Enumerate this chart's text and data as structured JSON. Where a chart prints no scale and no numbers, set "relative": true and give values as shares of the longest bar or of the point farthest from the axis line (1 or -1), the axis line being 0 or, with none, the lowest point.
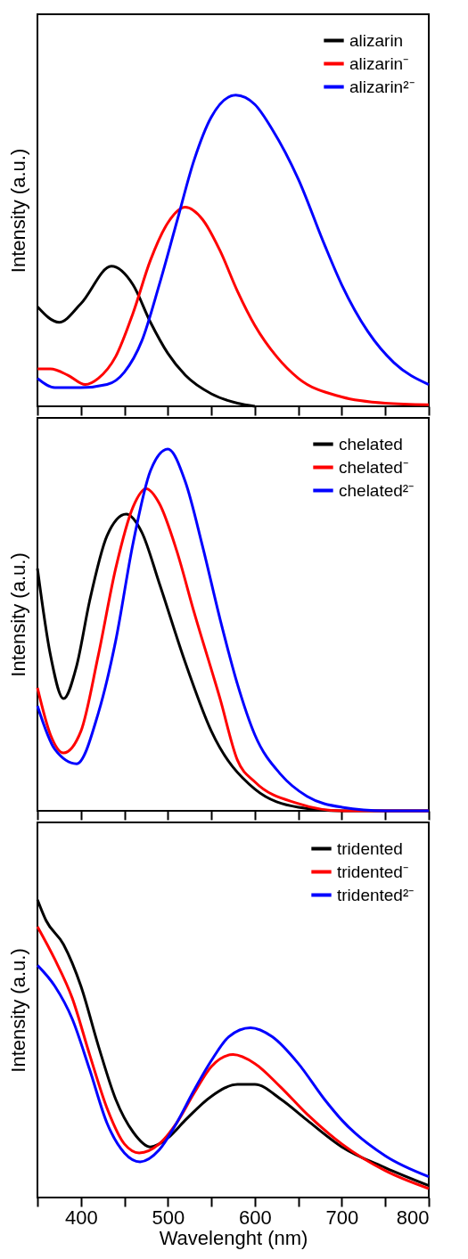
{
  "chart_data": [
    {
      "type": "line",
      "ylabel": "Intensity (a.u.)",
      "relative": true,
      "xlim": [
        350,
        800
      ],
      "xticks": [
        {
          "value": 350,
          "label": null
        },
        400,
        {
          "value": 450,
          "label": null
        },
        500,
        {
          "value": 550,
          "label": null
        },
        600,
        {
          "value": 650,
          "label": null
        },
        700,
        {
          "value": 750,
          "label": null
        },
        800
      ],
      "tick_labels": false,
      "grid": false,
      "legend": "top right",
      "line_style": "solid",
      "marker": "none",
      "series": [
        {
          "name": "alizarin",
          "color": "#000000",
          "x": [
            350,
            375,
            400,
            435,
            460,
            480,
            500,
            520,
            550,
            580,
            600
          ],
          "values": [
            0.32,
            0.27,
            0.33,
            0.45,
            0.39,
            0.27,
            0.17,
            0.1,
            0.04,
            0.01,
            0
          ]
        },
        {
          "name": "alizarin⁻",
          "color": "#ff0000",
          "x": [
            350,
            365,
            385,
            405,
            420,
            440,
            460,
            480,
            500,
            520,
            540,
            560,
            580,
            600,
            625,
            650,
            700,
            750,
            800
          ],
          "values": [
            0.12,
            0.12,
            0.1,
            0.07,
            0.09,
            0.16,
            0.3,
            0.47,
            0.59,
            0.64,
            0.6,
            0.5,
            0.37,
            0.26,
            0.16,
            0.09,
            0.03,
            0.01,
            0.005
          ]
        },
        {
          "name": "alizarin²⁻",
          "color": "#0000ff",
          "x": [
            350,
            370,
            400,
            430,
            450,
            470,
            490,
            510,
            530,
            550,
            578,
            600,
            620,
            650,
            680,
            700,
            730,
            760,
            800
          ],
          "values": [
            0.09,
            0.06,
            0.06,
            0.07,
            0.11,
            0.21,
            0.39,
            0.59,
            0.79,
            0.93,
            1,
            0.97,
            0.89,
            0.73,
            0.52,
            0.39,
            0.24,
            0.14,
            0.07
          ]
        }
      ]
    },
    {
      "type": "line",
      "ylabel": "Intensity (a.u.)",
      "relative": true,
      "xlim": [
        350,
        800
      ],
      "xticks": [
        {
          "value": 350,
          "label": null
        },
        400,
        {
          "value": 450,
          "label": null
        },
        500,
        {
          "value": 550,
          "label": null
        },
        600,
        {
          "value": 650,
          "label": null
        },
        700,
        {
          "value": 750,
          "label": null
        },
        800
      ],
      "tick_labels": false,
      "grid": false,
      "legend": "top right",
      "line_style": "solid",
      "marker": "none",
      "series": [
        {
          "name": "chelated",
          "color": "#000000",
          "x": [
            350,
            365,
            380,
            395,
            410,
            430,
            452,
            470,
            490,
            520,
            550,
            600,
            650,
            700,
            750,
            800
          ],
          "values": [
            0.67,
            0.43,
            0.31,
            0.4,
            0.58,
            0.76,
            0.82,
            0.77,
            0.63,
            0.41,
            0.22,
            0.06,
            0.01,
            0,
            0,
            0
          ]
        },
        {
          "name": "chelated⁻",
          "color": "#ff0000",
          "x": [
            350,
            365,
            380,
            400,
            420,
            440,
            460,
            475,
            490,
            510,
            530,
            560,
            580,
            600,
            650,
            700,
            750,
            800
          ],
          "values": [
            0.34,
            0.21,
            0.16,
            0.22,
            0.43,
            0.67,
            0.84,
            0.89,
            0.85,
            0.72,
            0.55,
            0.31,
            0.14,
            0.08,
            0.02,
            0,
            0,
            0
          ]
        },
        {
          "name": "chelated²⁻",
          "color": "#0000ff",
          "x": [
            350,
            370,
            395,
            420,
            440,
            460,
            480,
            500,
            520,
            540,
            560,
            580,
            600,
            630,
            660,
            700,
            750,
            800
          ],
          "values": [
            0.29,
            0.17,
            0.13,
            0.27,
            0.47,
            0.74,
            0.94,
            1,
            0.91,
            0.73,
            0.53,
            0.35,
            0.21,
            0.1,
            0.04,
            0.01,
            0,
            0
          ]
        }
      ]
    },
    {
      "type": "line",
      "ylabel": "Intensity (a.u.)",
      "xlabel": "Wavelenght (nm)",
      "relative": true,
      "xlim": [
        350,
        800
      ],
      "xticks": [
        {
          "value": 350,
          "label": null
        },
        400,
        {
          "value": 450,
          "label": null
        },
        500,
        {
          "value": 550,
          "label": null
        },
        600,
        {
          "value": 650,
          "label": null
        },
        700,
        {
          "value": 750,
          "label": null
        },
        800
      ],
      "tick_labels": "x",
      "grid": false,
      "legend": "top right",
      "line_style": "solid",
      "marker": "none",
      "series": [
        {
          "name": "tridented",
          "color": "#000000",
          "x": [
            350,
            360,
            380,
            400,
            420,
            440,
            460,
            480,
            500,
            520,
            550,
            580,
            600,
            630,
            660,
            700,
            750,
            800
          ],
          "values": [
            1,
            0.93,
            0.85,
            0.71,
            0.51,
            0.33,
            0.22,
            0.17,
            0.2,
            0.26,
            0.34,
            0.38,
            0.38,
            0.33,
            0.26,
            0.17,
            0.1,
            0.04
          ]
        },
        {
          "name": "tridented⁻",
          "color": "#ff0000",
          "x": [
            350,
            370,
            390,
            410,
            430,
            450,
            467,
            490,
            510,
            530,
            550,
            575,
            600,
            630,
            660,
            700,
            750,
            800
          ],
          "values": [
            0.91,
            0.8,
            0.67,
            0.48,
            0.3,
            0.18,
            0.15,
            0.18,
            0.25,
            0.35,
            0.44,
            0.48,
            0.45,
            0.37,
            0.28,
            0.18,
            0.09,
            0.03
          ]
        },
        {
          "name": "tridented²⁻",
          "color": "#0000ff",
          "x": [
            350,
            370,
            390,
            410,
            430,
            450,
            468,
            490,
            510,
            530,
            550,
            570,
            595,
            620,
            650,
            680,
            700,
            750,
            800
          ],
          "values": [
            0.78,
            0.71,
            0.6,
            0.43,
            0.25,
            0.15,
            0.12,
            0.16,
            0.25,
            0.36,
            0.46,
            0.54,
            0.57,
            0.54,
            0.45,
            0.33,
            0.26,
            0.14,
            0.07
          ]
        }
      ]
    }
  ]
}
